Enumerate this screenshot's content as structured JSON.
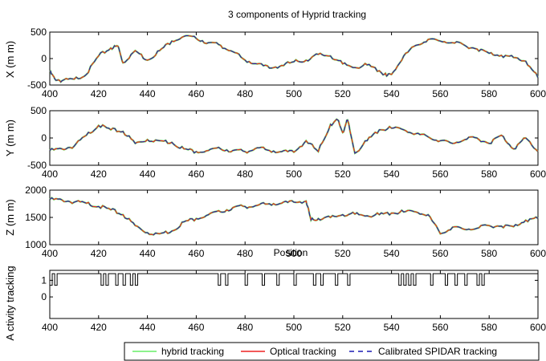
{
  "figure": {
    "title": "3 components of Hyprid tracking",
    "colors": {
      "hybrid": "#66ee66",
      "optical": "#ee2222",
      "spidar": "#1a1ab4"
    }
  },
  "legend": [
    {
      "label": "hybrid tracking",
      "color": "#66ee66"
    },
    {
      "label": "Optical tracking",
      "color": "#ee2222"
    },
    {
      "label": "Calibrated SPIDAR tracking",
      "color": "#1a1ab4"
    }
  ],
  "chart_data": [
    {
      "type": "line",
      "ylabel": "X  (m m)",
      "xlim": [
        400,
        600
      ],
      "ylim": [
        -500,
        500
      ],
      "xticks": [
        400,
        420,
        440,
        460,
        480,
        500,
        520,
        540,
        560,
        580,
        600
      ],
      "yticks": [
        -500,
        0,
        500
      ],
      "x": [
        400,
        402,
        405,
        410,
        415,
        420,
        425,
        428,
        430,
        435,
        440,
        445,
        450,
        455,
        460,
        465,
        470,
        475,
        480,
        485,
        490,
        495,
        500,
        505,
        510,
        515,
        520,
        525,
        530,
        535,
        538,
        540,
        545,
        550,
        555,
        560,
        565,
        570,
        575,
        580,
        585,
        590,
        595,
        600
      ],
      "series": [
        {
          "name": "hybrid tracking",
          "values": [
            -250,
            -380,
            -420,
            -390,
            -300,
            50,
            200,
            230,
            -80,
            150,
            -30,
            150,
            330,
            420,
            380,
            300,
            250,
            130,
            -30,
            -100,
            -180,
            -130,
            -60,
            -30,
            80,
            50,
            -100,
            -170,
            -120,
            -230,
            -330,
            -300,
            50,
            250,
            360,
            330,
            300,
            250,
            180,
            100,
            60,
            20,
            -50,
            -360
          ]
        }
      ]
    },
    {
      "type": "line",
      "ylabel": "Y  (m m)",
      "xlim": [
        400,
        600
      ],
      "ylim": [
        -500,
        500
      ],
      "xticks": [
        400,
        420,
        440,
        460,
        480,
        500,
        520,
        540,
        560,
        580,
        600
      ],
      "yticks": [
        -500,
        0,
        500
      ],
      "x": [
        400,
        405,
        410,
        415,
        420,
        425,
        430,
        435,
        440,
        445,
        450,
        455,
        460,
        465,
        470,
        475,
        480,
        485,
        490,
        495,
        500,
        505,
        510,
        515,
        518,
        520,
        522,
        525,
        530,
        535,
        540,
        545,
        550,
        555,
        560,
        565,
        570,
        575,
        580,
        585,
        590,
        595,
        600
      ],
      "series": [
        {
          "name": "hybrid tracking",
          "values": [
            -230,
            -200,
            -150,
            50,
            230,
            150,
            120,
            -100,
            -30,
            -50,
            -80,
            -200,
            -250,
            -230,
            -200,
            -230,
            -250,
            -180,
            -230,
            -250,
            -260,
            -50,
            -250,
            250,
            330,
            100,
            330,
            -280,
            -50,
            150,
            180,
            150,
            80,
            20,
            -50,
            -100,
            -30,
            0,
            -100,
            50,
            -200,
            0,
            -250
          ]
        }
      ]
    },
    {
      "type": "line",
      "ylabel": "Z  (m m)",
      "xlim": [
        400,
        600
      ],
      "ylim": [
        1000,
        2000
      ],
      "xticks": [
        400,
        420,
        440,
        460,
        480,
        500,
        520,
        540,
        560,
        580,
        600
      ],
      "yticks": [
        1000,
        1500,
        2000
      ],
      "x": [
        400,
        405,
        410,
        415,
        420,
        425,
        430,
        435,
        440,
        445,
        450,
        455,
        460,
        465,
        470,
        475,
        480,
        485,
        490,
        495,
        500,
        505,
        507,
        510,
        515,
        520,
        525,
        530,
        535,
        540,
        545,
        550,
        555,
        560,
        565,
        570,
        575,
        580,
        585,
        590,
        595,
        600
      ],
      "series": [
        {
          "name": "hybrid tracking",
          "values": [
            1830,
            1820,
            1780,
            1760,
            1700,
            1640,
            1550,
            1350,
            1220,
            1200,
            1250,
            1420,
            1480,
            1550,
            1600,
            1680,
            1700,
            1720,
            1750,
            1760,
            1780,
            1800,
            1450,
            1480,
            1500,
            1550,
            1560,
            1530,
            1550,
            1580,
            1600,
            1600,
            1550,
            1200,
            1320,
            1280,
            1300,
            1350,
            1340,
            1330,
            1450,
            1480
          ]
        }
      ]
    },
    {
      "type": "line",
      "title": "Position",
      "ylabel": "A ctivity  tracking",
      "xlim": [
        400,
        600
      ],
      "ylim": [
        -1.3,
        1.6
      ],
      "xticks": [
        400,
        420,
        440,
        460,
        480,
        500,
        520,
        540,
        560,
        580,
        600
      ],
      "yticks": [
        0,
        1
      ],
      "ytick_labels": [
        "0",
        "1"
      ],
      "baseline": 0.7,
      "high": 1.4,
      "dips": [
        [
          400,
          401
        ],
        [
          402,
          403
        ],
        [
          421,
          422
        ],
        [
          423,
          424
        ],
        [
          427,
          428
        ],
        [
          430,
          431
        ],
        [
          433,
          434
        ],
        [
          435,
          436
        ],
        [
          469,
          470
        ],
        [
          472,
          473
        ],
        [
          480,
          481
        ],
        [
          487,
          488
        ],
        [
          493,
          494
        ],
        [
          500,
          501
        ],
        [
          508,
          509
        ],
        [
          511,
          512
        ],
        [
          517,
          518
        ],
        [
          522,
          523
        ],
        [
          543,
          544
        ],
        [
          545,
          546
        ],
        [
          547,
          548
        ],
        [
          549,
          550
        ],
        [
          556,
          557
        ],
        [
          562,
          563
        ],
        [
          566,
          567
        ],
        [
          570,
          571
        ],
        [
          575,
          576
        ],
        [
          577,
          578
        ]
      ]
    }
  ]
}
